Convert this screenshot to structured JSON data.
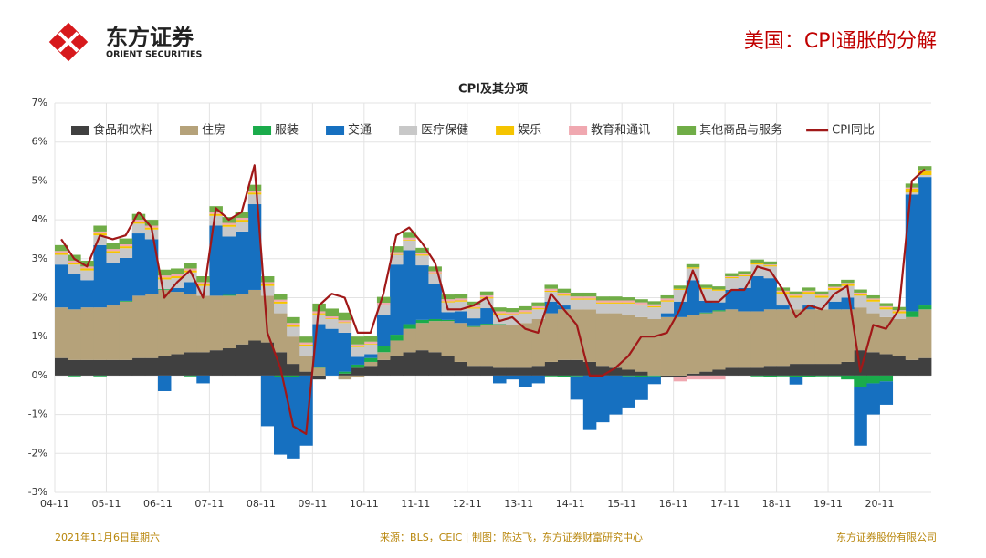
{
  "header": {
    "logo_cn": "东方证券",
    "logo_en": "ORIENT SECURITIES",
    "page_title": "美国：CPI通胀的分解"
  },
  "chart_data": {
    "type": "bar",
    "title": "CPI及其分项",
    "categories": [
      "04-11",
      null,
      null,
      null,
      "05-11",
      null,
      null,
      null,
      "06-11",
      null,
      null,
      null,
      "07-11",
      null,
      null,
      null,
      "08-11",
      null,
      null,
      null,
      "09-11",
      null,
      null,
      null,
      "10-11",
      null,
      null,
      null,
      "11-11",
      null,
      null,
      null,
      "12-11",
      null,
      null,
      null,
      "13-11",
      null,
      null,
      null,
      "14-11",
      null,
      null,
      null,
      "15-11",
      null,
      null,
      null,
      "16-11",
      null,
      null,
      null,
      "17-11",
      null,
      null,
      null,
      "18-11",
      null,
      null,
      null,
      "19-11",
      null,
      null,
      null,
      "20-11",
      null,
      null,
      null
    ],
    "ylim": [
      -3,
      7
    ],
    "yticks": [
      {
        "value": -3,
        "label": "-3%"
      },
      {
        "value": -2,
        "label": "-2%"
      },
      {
        "value": -1,
        "label": "-1%"
      },
      {
        "value": 0,
        "label": "0%"
      },
      {
        "value": 1,
        "label": "1%"
      },
      {
        "value": 2,
        "label": "2%"
      },
      {
        "value": 3,
        "label": "3%"
      },
      {
        "value": 4,
        "label": "4%"
      },
      {
        "value": 5,
        "label": "5%"
      },
      {
        "value": 6,
        "label": "6%"
      },
      {
        "value": 7,
        "label": "7%"
      }
    ],
    "grid": true,
    "stacked": true,
    "legend": "top",
    "series": [
      {
        "name": "食品和饮料",
        "color": "#404040",
        "values": [
          0.45,
          0.4,
          0.4,
          0.4,
          0.4,
          0.4,
          0.45,
          0.45,
          0.5,
          0.55,
          0.6,
          0.6,
          0.65,
          0.7,
          0.8,
          0.9,
          0.85,
          0.6,
          0.3,
          0.1,
          -0.1,
          0.0,
          0.05,
          0.2,
          0.25,
          0.4,
          0.5,
          0.6,
          0.65,
          0.6,
          0.5,
          0.35,
          0.25,
          0.25,
          0.2,
          0.2,
          0.2,
          0.25,
          0.35,
          0.4,
          0.4,
          0.35,
          0.25,
          0.2,
          0.15,
          0.1,
          0.0,
          -0.05,
          -0.05,
          0.05,
          0.1,
          0.15,
          0.2,
          0.2,
          0.2,
          0.25,
          0.25,
          0.3,
          0.3,
          0.3,
          0.3,
          0.35,
          0.65,
          0.6,
          0.55,
          0.5,
          0.4,
          0.45
        ]
      },
      {
        "name": "住房",
        "color": "#b5a27a",
        "values": [
          1.3,
          1.3,
          1.35,
          1.35,
          1.4,
          1.5,
          1.6,
          1.65,
          1.7,
          1.6,
          1.5,
          1.45,
          1.4,
          1.35,
          1.3,
          1.3,
          1.2,
          1.0,
          0.7,
          0.4,
          0.2,
          0.0,
          -0.1,
          -0.05,
          0.1,
          0.2,
          0.4,
          0.6,
          0.7,
          0.8,
          0.9,
          1.0,
          1.0,
          1.05,
          1.1,
          1.1,
          1.15,
          1.2,
          1.25,
          1.3,
          1.3,
          1.35,
          1.35,
          1.4,
          1.4,
          1.4,
          1.45,
          1.5,
          1.5,
          1.5,
          1.5,
          1.5,
          1.5,
          1.45,
          1.45,
          1.45,
          1.45,
          1.4,
          1.4,
          1.4,
          1.4,
          1.35,
          1.1,
          1.0,
          0.95,
          0.95,
          1.1,
          1.25
        ]
      },
      {
        "name": "服装",
        "color": "#1aab4b",
        "values": [
          0.0,
          -0.02,
          0.0,
          -0.02,
          0.0,
          0.02,
          0.0,
          0.0,
          0.02,
          0.0,
          -0.02,
          0.0,
          0.0,
          0.02,
          0.0,
          0.0,
          0.0,
          -0.03,
          -0.03,
          0.0,
          0.02,
          0.0,
          0.05,
          0.08,
          0.1,
          0.15,
          0.15,
          0.12,
          0.08,
          0.05,
          0.03,
          0.0,
          0.02,
          0.03,
          0.02,
          0.0,
          0.0,
          0.0,
          -0.02,
          -0.03,
          -0.02,
          0.0,
          0.0,
          0.0,
          -0.02,
          -0.03,
          -0.02,
          0.0,
          0.0,
          0.0,
          0.02,
          0.03,
          0.0,
          0.0,
          -0.02,
          -0.03,
          -0.02,
          -0.03,
          -0.03,
          -0.02,
          -0.02,
          -0.1,
          -0.3,
          -0.2,
          -0.15,
          0.0,
          0.15,
          0.1
        ]
      },
      {
        "name": "交通",
        "color": "#1670c0",
        "values": [
          1.1,
          0.9,
          0.7,
          1.6,
          1.1,
          1.1,
          1.6,
          1.4,
          -0.4,
          0.1,
          0.3,
          -0.2,
          1.8,
          1.5,
          1.6,
          2.2,
          -1.3,
          -2.0,
          -2.1,
          -1.8,
          1.1,
          1.2,
          1.0,
          0.2,
          0.1,
          0.8,
          1.8,
          1.9,
          1.4,
          0.9,
          0.2,
          0.3,
          0.2,
          0.4,
          -0.2,
          -0.1,
          -0.3,
          -0.2,
          0.3,
          0.1,
          -0.6,
          -1.4,
          -1.2,
          -1.0,
          -0.8,
          -0.6,
          -0.2,
          0.1,
          0.4,
          0.9,
          0.3,
          0.2,
          0.5,
          0.6,
          0.9,
          0.8,
          0.1,
          -0.2,
          0.1,
          0.0,
          0.2,
          0.3,
          -1.5,
          -0.8,
          -0.6,
          0.0,
          3.0,
          3.3
        ]
      },
      {
        "name": "医疗保健",
        "color": "#c8c8c8",
        "values": [
          0.25,
          0.25,
          0.25,
          0.25,
          0.25,
          0.25,
          0.25,
          0.25,
          0.25,
          0.25,
          0.25,
          0.25,
          0.25,
          0.25,
          0.25,
          0.25,
          0.25,
          0.25,
          0.25,
          0.25,
          0.25,
          0.25,
          0.25,
          0.25,
          0.25,
          0.25,
          0.25,
          0.25,
          0.25,
          0.25,
          0.25,
          0.25,
          0.25,
          0.25,
          0.25,
          0.25,
          0.25,
          0.25,
          0.25,
          0.25,
          0.25,
          0.25,
          0.25,
          0.25,
          0.3,
          0.3,
          0.3,
          0.3,
          0.3,
          0.3,
          0.3,
          0.3,
          0.3,
          0.3,
          0.3,
          0.3,
          0.3,
          0.3,
          0.3,
          0.3,
          0.3,
          0.3,
          0.3,
          0.3,
          0.2,
          0.15,
          0.05,
          0.05
        ]
      },
      {
        "name": "娱乐",
        "color": "#f5c400",
        "values": [
          0.05,
          0.05,
          0.05,
          0.05,
          0.05,
          0.05,
          0.05,
          0.05,
          0.05,
          0.05,
          0.05,
          0.05,
          0.05,
          0.05,
          0.05,
          0.05,
          0.05,
          0.05,
          0.05,
          0.05,
          0.03,
          0.02,
          0.02,
          0.02,
          0.02,
          0.02,
          0.02,
          0.02,
          0.03,
          0.03,
          0.03,
          0.03,
          0.03,
          0.03,
          0.03,
          0.03,
          0.03,
          0.03,
          0.03,
          0.03,
          0.03,
          0.03,
          0.03,
          0.03,
          0.03,
          0.03,
          0.03,
          0.03,
          0.03,
          0.03,
          0.03,
          0.03,
          0.03,
          0.03,
          0.03,
          0.03,
          0.05,
          0.05,
          0.05,
          0.05,
          0.05,
          0.05,
          0.05,
          0.05,
          0.05,
          0.05,
          0.1,
          0.1
        ]
      },
      {
        "name": "教育和通讯",
        "color": "#f0a8b0",
        "values": [
          0.05,
          0.05,
          0.05,
          0.05,
          0.05,
          0.05,
          0.05,
          0.05,
          0.05,
          0.05,
          0.05,
          0.05,
          0.05,
          0.05,
          0.05,
          0.05,
          0.05,
          0.05,
          0.05,
          0.05,
          0.05,
          0.05,
          0.05,
          0.05,
          0.05,
          0.05,
          0.05,
          0.05,
          0.05,
          0.05,
          0.05,
          0.05,
          0.05,
          0.05,
          0.05,
          0.05,
          0.05,
          0.05,
          0.05,
          0.05,
          0.05,
          0.05,
          0.05,
          0.05,
          0.05,
          0.05,
          0.05,
          0.05,
          -0.1,
          -0.1,
          -0.1,
          -0.1,
          0.02,
          0.02,
          0.02,
          0.02,
          0.03,
          0.03,
          0.03,
          0.03,
          0.03,
          0.03,
          0.03,
          0.03,
          0.03,
          0.03,
          0.03,
          0.03
        ]
      },
      {
        "name": "其他商品与服务",
        "color": "#70ad47",
        "values": [
          0.15,
          0.15,
          0.15,
          0.15,
          0.15,
          0.15,
          0.15,
          0.15,
          0.15,
          0.15,
          0.15,
          0.15,
          0.15,
          0.15,
          0.15,
          0.15,
          0.15,
          0.15,
          0.15,
          0.15,
          0.2,
          0.2,
          0.2,
          0.2,
          0.15,
          0.15,
          0.15,
          0.15,
          0.12,
          0.12,
          0.12,
          0.12,
          0.1,
          0.1,
          0.1,
          0.1,
          0.1,
          0.1,
          0.1,
          0.1,
          0.1,
          0.1,
          0.1,
          0.1,
          0.08,
          0.08,
          0.08,
          0.08,
          0.08,
          0.08,
          0.08,
          0.08,
          0.08,
          0.08,
          0.08,
          0.08,
          0.08,
          0.08,
          0.08,
          0.08,
          0.08,
          0.08,
          0.08,
          0.08,
          0.08,
          0.08,
          0.1,
          0.1
        ]
      },
      {
        "name": "CPI同比",
        "color": "#a01818",
        "type": "line",
        "values": [
          3.5,
          3.0,
          2.8,
          3.6,
          3.5,
          3.6,
          4.2,
          3.8,
          2.0,
          2.4,
          2.7,
          2.0,
          4.3,
          4.0,
          4.2,
          5.4,
          1.1,
          0.2,
          -1.3,
          -1.5,
          1.8,
          2.1,
          2.0,
          1.1,
          1.1,
          2.1,
          3.6,
          3.8,
          3.4,
          2.9,
          1.7,
          1.7,
          1.8,
          2.0,
          1.4,
          1.5,
          1.2,
          1.1,
          2.1,
          1.7,
          1.3,
          0.0,
          0.0,
          0.2,
          0.5,
          1.0,
          1.0,
          1.1,
          1.7,
          2.7,
          1.9,
          1.9,
          2.2,
          2.2,
          2.8,
          2.7,
          2.2,
          1.5,
          1.8,
          1.7,
          2.1,
          2.3,
          0.1,
          1.3,
          1.2,
          1.7,
          5.0,
          5.3
        ]
      }
    ]
  },
  "footer": {
    "date": "2021年11月6日星期六",
    "source": "来源：BLS，CEIC | 制图：陈达飞，东方证券财富研究中心",
    "company": "东方证券股份有限公司"
  }
}
